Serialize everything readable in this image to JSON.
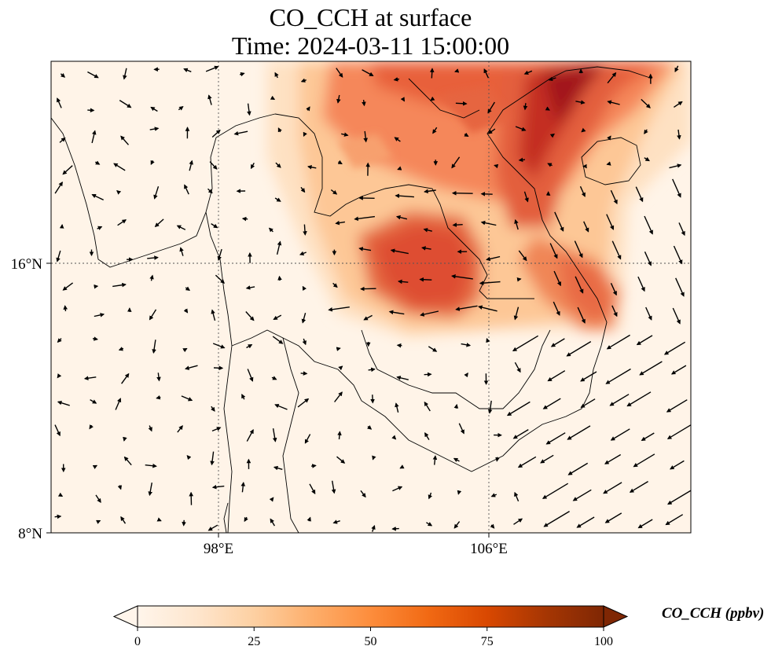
{
  "title": {
    "line1": "CO_CCH at surface",
    "line2": "Time: 2024-03-11 15:00:00"
  },
  "map": {
    "variable": "CO_CCH",
    "level": "surface",
    "gridlines": "dotted",
    "longitude_ticks": [
      "98°E",
      "106°E"
    ],
    "latitude_ticks": [
      "16°N",
      "8°N"
    ],
    "overlay": "wind vectors (arrows)",
    "high_concentration_regions": [
      "northern Vietnam / Gulf of Tonkin coast (up to ~100 ppbv)",
      "central Laos / northeastern Thailand (~60-75 ppbv)",
      "central Vietnam coast (~60 ppbv)"
    ]
  },
  "colorbar": {
    "label": "CO_CCH (ppbv)",
    "ticks": [
      "0",
      "25",
      "50",
      "75",
      "100"
    ],
    "min": 0,
    "max": 100,
    "colormap": [
      "#fff5eb",
      "#fee6ce",
      "#fdd0a2",
      "#fdae6b",
      "#fd8d3c",
      "#f16913",
      "#d94801",
      "#a63603",
      "#7f2704"
    ],
    "extend": "both"
  }
}
